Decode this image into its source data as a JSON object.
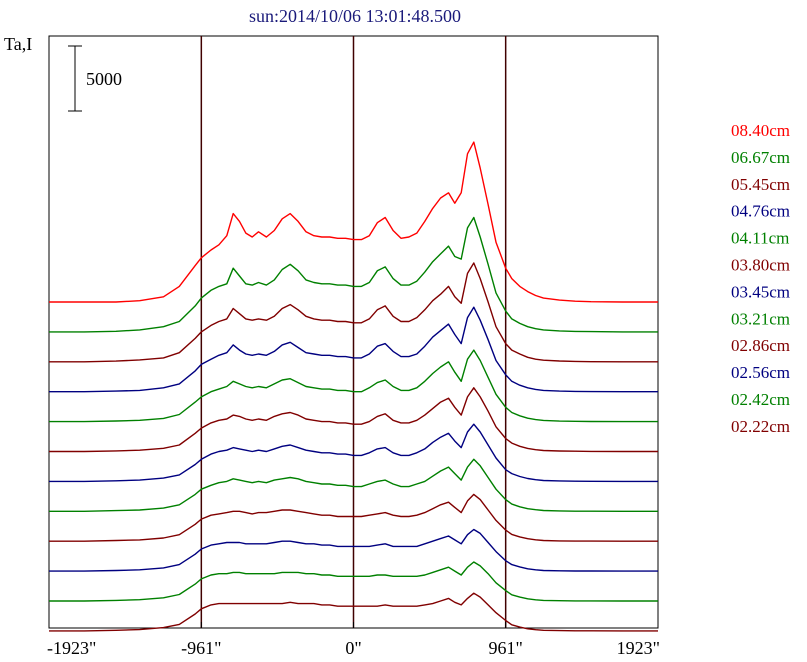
{
  "chart_data": {
    "type": "line",
    "title": "sun:2014/10/06 13:01:48.500",
    "ylabel": "Ta,I",
    "scale_bar_label": "5000",
    "scale_bar_value": 5000,
    "xlim": [
      -1923,
      1923
    ],
    "x_ticks": [
      -1923,
      -961,
      0,
      961,
      1923
    ],
    "x_tick_labels": [
      "-1923\"",
      "-961\"",
      "0\"",
      "961\"",
      "1923\""
    ],
    "vertical_lines": [
      -961,
      0,
      961
    ],
    "grid": false,
    "legend_position": "right",
    "x": [
      -1923,
      -1700,
      -1500,
      -1350,
      -1200,
      -1100,
      -1000,
      -961,
      -900,
      -850,
      -800,
      -760,
      -720,
      -680,
      -640,
      -600,
      -550,
      -500,
      -450,
      -400,
      -350,
      -300,
      -250,
      -200,
      -150,
      -100,
      -50,
      0,
      50,
      100,
      150,
      200,
      250,
      300,
      350,
      400,
      450,
      500,
      550,
      600,
      640,
      680,
      720,
      760,
      800,
      850,
      900,
      961,
      1000,
      1050,
      1100,
      1150,
      1200,
      1300,
      1400,
      1500,
      1700,
      1923
    ],
    "series": [
      {
        "name": "08.40cm",
        "color": "#ff0000",
        "offset": 24000,
        "values": [
          0,
          0,
          0,
          100,
          400,
          1200,
          2800,
          3400,
          4000,
          4400,
          5100,
          6800,
          6200,
          5300,
          5000,
          5400,
          5000,
          5500,
          6400,
          6800,
          6200,
          5400,
          5100,
          5000,
          5000,
          4900,
          4900,
          4800,
          4800,
          5100,
          6100,
          6500,
          5500,
          4900,
          5000,
          5300,
          6200,
          7200,
          8000,
          8400,
          7600,
          8400,
          11400,
          12300,
          10300,
          7500,
          4600,
          2600,
          1800,
          1200,
          800,
          500,
          300,
          150,
          60,
          20,
          0,
          0
        ]
      },
      {
        "name": "06.67cm",
        "color": "#008000",
        "offset": 21700,
        "values": [
          0,
          0,
          50,
          150,
          400,
          800,
          2000,
          2600,
          3200,
          3500,
          3700,
          4900,
          4300,
          3700,
          3600,
          3800,
          3600,
          4000,
          4800,
          5200,
          4700,
          4000,
          3800,
          3700,
          3700,
          3600,
          3600,
          3500,
          3500,
          3800,
          4700,
          5000,
          4100,
          3600,
          3600,
          3900,
          4600,
          5400,
          6000,
          6600,
          5800,
          5600,
          8000,
          8800,
          7300,
          5200,
          3000,
          1600,
          1000,
          650,
          400,
          250,
          150,
          80,
          40,
          20,
          0,
          0
        ]
      },
      {
        "name": "05.45cm",
        "color": "#800000",
        "offset": 19400,
        "values": [
          0,
          0,
          50,
          150,
          300,
          700,
          1800,
          2300,
          2800,
          3100,
          3300,
          4100,
          3700,
          3300,
          3200,
          3300,
          3200,
          3500,
          4100,
          4400,
          4000,
          3500,
          3300,
          3200,
          3200,
          3100,
          3100,
          3000,
          3000,
          3300,
          4000,
          4300,
          3500,
          3100,
          3100,
          3400,
          4000,
          4700,
          5200,
          5800,
          5000,
          4500,
          6800,
          7600,
          6400,
          4600,
          2700,
          1400,
          900,
          600,
          350,
          200,
          120,
          60,
          30,
          10,
          0,
          0
        ]
      },
      {
        "name": "04.76cm",
        "color": "#000080",
        "offset": 17100,
        "values": [
          0,
          0,
          50,
          100,
          300,
          600,
          1600,
          2100,
          2500,
          2800,
          3000,
          3600,
          3200,
          2900,
          2800,
          2900,
          2800,
          3100,
          3600,
          3800,
          3400,
          3000,
          2900,
          2800,
          2800,
          2700,
          2700,
          2600,
          2600,
          2900,
          3500,
          3700,
          3100,
          2700,
          2700,
          2900,
          3500,
          4200,
          4700,
          5200,
          4400,
          3700,
          5700,
          6500,
          5500,
          4000,
          2400,
          1300,
          800,
          500,
          300,
          180,
          100,
          50,
          20,
          10,
          0,
          0
        ]
      },
      {
        "name": "04.11cm",
        "color": "#008000",
        "offset": 14800,
        "values": [
          0,
          0,
          50,
          100,
          250,
          550,
          1500,
          1900,
          2300,
          2500,
          2700,
          3100,
          2900,
          2700,
          2600,
          2700,
          2600,
          2900,
          3200,
          3300,
          3000,
          2700,
          2600,
          2500,
          2500,
          2400,
          2400,
          2300,
          2300,
          2600,
          3000,
          3200,
          2700,
          2400,
          2400,
          2600,
          3100,
          3700,
          4200,
          4600,
          3800,
          3100,
          4800,
          5500,
          4700,
          3400,
          2100,
          1100,
          700,
          450,
          260,
          150,
          90,
          40,
          20,
          10,
          0,
          0
        ]
      },
      {
        "name": "03.80cm",
        "color": "#800000",
        "offset": 12500,
        "values": [
          0,
          0,
          50,
          100,
          250,
          500,
          1400,
          1800,
          2200,
          2400,
          2500,
          2800,
          2700,
          2500,
          2400,
          2500,
          2400,
          2700,
          2900,
          3000,
          2800,
          2500,
          2400,
          2300,
          2300,
          2200,
          2200,
          2100,
          2100,
          2300,
          2700,
          2900,
          2400,
          2200,
          2200,
          2400,
          2800,
          3300,
          3800,
          4100,
          3400,
          2800,
          4200,
          4900,
          4200,
          3100,
          1900,
          1000,
          650,
          400,
          240,
          140,
          80,
          40,
          20,
          10,
          0,
          0
        ]
      },
      {
        "name": "03.45cm",
        "color": "#000080",
        "offset": 10200,
        "values": [
          0,
          0,
          50,
          100,
          250,
          500,
          1300,
          1700,
          2100,
          2300,
          2400,
          2600,
          2500,
          2400,
          2300,
          2400,
          2300,
          2500,
          2700,
          2800,
          2600,
          2400,
          2300,
          2200,
          2200,
          2100,
          2100,
          2000,
          2000,
          2200,
          2500,
          2600,
          2200,
          2000,
          2000,
          2200,
          2500,
          3000,
          3400,
          3700,
          3100,
          2600,
          3800,
          4400,
          3800,
          2800,
          1800,
          900,
          600,
          380,
          220,
          130,
          70,
          35,
          15,
          5,
          0,
          0
        ]
      },
      {
        "name": "03.21cm",
        "color": "#008000",
        "offset": 7900,
        "values": [
          0,
          0,
          50,
          100,
          250,
          500,
          1300,
          1700,
          2000,
          2200,
          2300,
          2500,
          2400,
          2300,
          2200,
          2300,
          2200,
          2400,
          2500,
          2600,
          2500,
          2300,
          2200,
          2100,
          2100,
          2000,
          2000,
          1900,
          1900,
          2100,
          2300,
          2400,
          2100,
          1900,
          1900,
          2100,
          2300,
          2700,
          3100,
          3400,
          2900,
          2400,
          3400,
          4000,
          3500,
          2600,
          1700,
          900,
          550,
          350,
          200,
          120,
          60,
          30,
          10,
          5,
          0,
          0
        ]
      },
      {
        "name": "02.86cm",
        "color": "#800000",
        "offset": 5600,
        "values": [
          0,
          0,
          50,
          100,
          250,
          500,
          1300,
          1700,
          2000,
          2100,
          2200,
          2300,
          2300,
          2200,
          2100,
          2200,
          2200,
          2300,
          2400,
          2400,
          2300,
          2200,
          2100,
          2000,
          2000,
          1900,
          1900,
          1900,
          1900,
          2000,
          2100,
          2200,
          2000,
          1900,
          1900,
          2000,
          2200,
          2500,
          2800,
          3000,
          2600,
          2200,
          3100,
          3600,
          3200,
          2400,
          1600,
          850,
          520,
          330,
          190,
          110,
          55,
          25,
          10,
          5,
          0,
          0
        ]
      },
      {
        "name": "02.56cm",
        "color": "#000080",
        "offset": 3300,
        "values": [
          0,
          0,
          50,
          100,
          250,
          500,
          1300,
          1700,
          2000,
          2100,
          2200,
          2200,
          2200,
          2100,
          2100,
          2100,
          2100,
          2200,
          2300,
          2300,
          2200,
          2100,
          2100,
          2000,
          2000,
          1900,
          1900,
          1900,
          1900,
          1900,
          2000,
          2100,
          1900,
          1900,
          1900,
          1900,
          2100,
          2300,
          2500,
          2700,
          2400,
          2100,
          2800,
          3200,
          2900,
          2200,
          1500,
          800,
          500,
          320,
          180,
          100,
          50,
          25,
          10,
          5,
          0,
          0
        ]
      },
      {
        "name": "02.42cm",
        "color": "#008000",
        "offset": 1000,
        "values": [
          0,
          0,
          50,
          100,
          250,
          500,
          1300,
          1700,
          2000,
          2100,
          2100,
          2200,
          2200,
          2100,
          2100,
          2100,
          2100,
          2100,
          2200,
          2200,
          2200,
          2100,
          2100,
          2000,
          2000,
          1900,
          1900,
          1900,
          1900,
          1900,
          2000,
          2000,
          1900,
          1900,
          1900,
          1900,
          2000,
          2200,
          2400,
          2600,
          2300,
          2000,
          2600,
          3000,
          2700,
          2100,
          1400,
          800,
          480,
          300,
          170,
          95,
          50,
          25,
          10,
          5,
          0,
          0
        ]
      },
      {
        "name": "02.22cm",
        "color": "#800000",
        "offset": -1300,
        "values": [
          0,
          0,
          50,
          100,
          250,
          500,
          1300,
          1700,
          2000,
          2100,
          2100,
          2100,
          2100,
          2100,
          2100,
          2100,
          2100,
          2100,
          2100,
          2200,
          2100,
          2100,
          2100,
          2000,
          2000,
          1900,
          1900,
          1900,
          1900,
          1900,
          1900,
          2000,
          1900,
          1900,
          1900,
          1900,
          2000,
          2100,
          2300,
          2500,
          2200,
          2000,
          2500,
          2900,
          2600,
          2000,
          1400,
          800,
          470,
          290,
          160,
          90,
          45,
          20,
          10,
          5,
          0,
          0
        ]
      }
    ]
  }
}
